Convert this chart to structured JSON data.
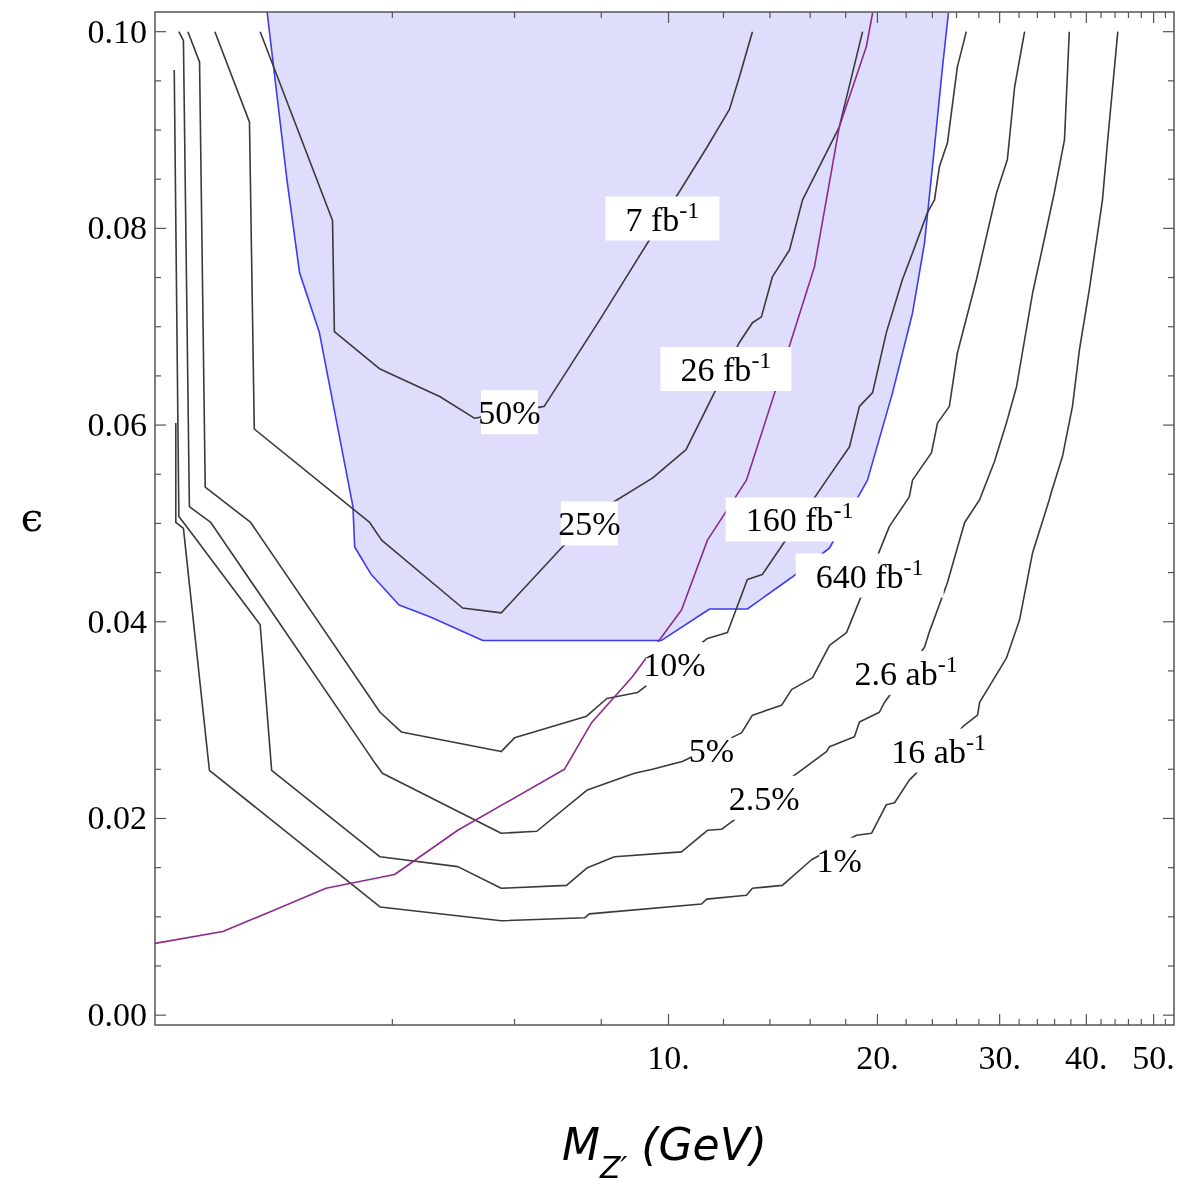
{
  "chart_data": {
    "type": "line",
    "xlabel": "M$_{Z′}$ (GeV)",
    "ylabel": "ϵ",
    "log": "x",
    "xlim": [
      1.82,
      53.5
    ],
    "ylim": [
      -0.001,
      0.102
    ],
    "xticks": [
      {
        "value": 4,
        "label": null
      },
      {
        "value": 6,
        "label": null
      },
      {
        "value": 8,
        "label": null
      },
      {
        "value": 10,
        "label": "10."
      },
      {
        "value": 12,
        "label": null
      },
      {
        "value": 14,
        "label": null
      },
      {
        "value": 16,
        "label": null
      },
      {
        "value": 18,
        "label": null
      },
      {
        "value": 20,
        "label": "20."
      },
      {
        "value": 22,
        "label": null
      },
      {
        "value": 24,
        "label": null
      },
      {
        "value": 26,
        "label": null
      },
      {
        "value": 28,
        "label": null
      },
      {
        "value": 30,
        "label": "30."
      },
      {
        "value": 32,
        "label": null
      },
      {
        "value": 34,
        "label": null
      },
      {
        "value": 36,
        "label": null
      },
      {
        "value": 38,
        "label": null
      },
      {
        "value": 40,
        "label": "40."
      },
      {
        "value": 42,
        "label": null
      },
      {
        "value": 44,
        "label": null
      },
      {
        "value": 46,
        "label": null
      },
      {
        "value": 48,
        "label": null
      },
      {
        "value": 50,
        "label": "50."
      },
      {
        "value": 52,
        "label": null
      }
    ],
    "yticks": [
      {
        "value": 0,
        "label": "0.00"
      },
      {
        "value": 0.005,
        "label": null
      },
      {
        "value": 0.01,
        "label": null
      },
      {
        "value": 0.015,
        "label": null
      },
      {
        "value": 0.02,
        "label": "0.02"
      },
      {
        "value": 0.025,
        "label": null
      },
      {
        "value": 0.03,
        "label": null
      },
      {
        "value": 0.035,
        "label": null
      },
      {
        "value": 0.04,
        "label": "0.04"
      },
      {
        "value": 0.045,
        "label": null
      },
      {
        "value": 0.05,
        "label": null
      },
      {
        "value": 0.055,
        "label": null
      },
      {
        "value": 0.06,
        "label": "0.06"
      },
      {
        "value": 0.065,
        "label": null
      },
      {
        "value": 0.07,
        "label": null
      },
      {
        "value": 0.075,
        "label": null
      },
      {
        "value": 0.08,
        "label": "0.08"
      },
      {
        "value": 0.085,
        "label": null
      },
      {
        "value": 0.09,
        "label": null
      },
      {
        "value": 0.095,
        "label": null
      },
      {
        "value": 0.1,
        "label": "0.10"
      }
    ],
    "series": [
      {
        "type": "line",
        "color": "#3c3cf0",
        "x": [
          2.64,
          2.82,
          2.94,
          3.14,
          3.51,
          3.53,
          3.73,
          4.09,
          4.53,
          5.4,
          9.77,
          11.46,
          12.99,
          15.04,
          17.06,
          19.35,
          21.03,
          22.47,
          23.38,
          24.17,
          24.82,
          25.31
        ],
        "values": [
          0.102,
          0.0849,
          0.0755,
          0.0694,
          0.0517,
          0.0476,
          0.0448,
          0.0417,
          0.0405,
          0.0381,
          0.0381,
          0.0413,
          0.0413,
          0.0445,
          0.0475,
          0.0544,
          0.0633,
          0.0714,
          0.0785,
          0.0883,
          0.0964,
          0.1019
        ],
        "lower": [
          0.102,
          0.0849,
          0.0755,
          0.0694,
          0.0517,
          0.0476,
          0.0448,
          0.0417,
          0.0405,
          0.0381,
          0.0381,
          0.0413,
          0.0413,
          0.0445,
          0.0475,
          0.0544,
          0.0633,
          0.0714,
          0.0785,
          0.0883,
          0.0964,
          0.1019
        ],
        "upper": [
          0.102,
          0.102,
          0.102,
          0.102,
          0.102,
          0.102,
          0.102,
          0.102,
          0.102,
          0.102,
          0.102,
          0.102,
          0.102,
          0.102,
          0.102,
          0.102,
          0.102,
          0.102,
          0.102,
          0.102,
          0.102,
          0.102
        ]
      },
      {
        "color": "#3a3a3a",
        "x": [
          2.58,
          3.28,
          3.3,
          3.84,
          4.68,
          5.25,
          6.62,
          7.96,
          11.35,
          12.24,
          12.65,
          13.21
        ],
        "values": [
          0.1,
          0.0808,
          0.0695,
          0.0657,
          0.0629,
          0.0607,
          0.0619,
          0.0707,
          0.0882,
          0.0921,
          0.0954,
          0.1
        ]
      },
      {
        "color": "#3a3a3a",
        "x": [
          2.22,
          2.49,
          2.53,
          3.71,
          3.86,
          5.05,
          5.74,
          7.03,
          8.3,
          9.48,
          10.6,
          12.65,
          13.21,
          13.61,
          14.12,
          14.94,
          15.6,
          17.62,
          19.04
        ],
        "values": [
          0.1,
          0.0908,
          0.0596,
          0.0501,
          0.0483,
          0.0414,
          0.0409,
          0.0476,
          0.0521,
          0.0546,
          0.0575,
          0.0684,
          0.0704,
          0.071,
          0.0751,
          0.0778,
          0.0829,
          0.0903,
          0.1
        ]
      },
      {
        "color": "#3a3a3a",
        "x": [
          2.03,
          2.11,
          2.15,
          2.5,
          3.84,
          4.12,
          5.74,
          6.0,
          7.62,
          8.15,
          9.02,
          11.38,
          12.16,
          12.99,
          13.65,
          16.89,
          18.23,
          18.84,
          19.68,
          20.6,
          21.73,
          22.47,
          23.61,
          24.17,
          24.57,
          25.23,
          26.07,
          26.86
        ],
        "values": [
          0.1,
          0.0969,
          0.0537,
          0.0501,
          0.0308,
          0.0288,
          0.0268,
          0.0282,
          0.0304,
          0.0322,
          0.0328,
          0.0383,
          0.0389,
          0.0443,
          0.0448,
          0.0544,
          0.0578,
          0.0619,
          0.0633,
          0.0694,
          0.0748,
          0.0775,
          0.0816,
          0.0829,
          0.0863,
          0.0887,
          0.0964,
          0.1
        ]
      },
      {
        "color": "#3a3a3a",
        "x": [
          1.97,
          2.0,
          2.04,
          2.19,
          3.77,
          3.87,
          5.74,
          6.46,
          7.64,
          8.93,
          9.48,
          10.47,
          12.74,
          13.21,
          14.55,
          15.04,
          16.12,
          17.06,
          18.05,
          20.81,
          22.23,
          22.47,
          23.93,
          24.41,
          25.39,
          26.07,
          27.78,
          29.69,
          30.78,
          31.53,
          32.59
        ],
        "values": [
          0.1,
          0.0991,
          0.0517,
          0.0501,
          0.0257,
          0.0246,
          0.0185,
          0.0187,
          0.0229,
          0.0246,
          0.025,
          0.0258,
          0.0287,
          0.0305,
          0.0315,
          0.0331,
          0.0343,
          0.0376,
          0.0389,
          0.0497,
          0.0527,
          0.0544,
          0.0572,
          0.0602,
          0.0619,
          0.0673,
          0.0748,
          0.0836,
          0.087,
          0.0944,
          0.1
        ]
      },
      {
        "color": "#3a3a3a",
        "x": [
          1.94,
          1.97,
          2.04,
          2.58,
          2.68,
          3.84,
          4.97,
          5.74,
          7.13,
          7.64,
          8.36,
          10.44,
          11.38,
          11.92,
          16.89,
          17.06,
          18.53,
          18.84,
          20.13,
          20.47,
          23.38,
          23.77,
          25.23,
          26.71,
          28.07,
          29.49,
          30.68,
          31.73,
          33.46,
          34.45,
          35.96,
          37.2,
          37.8
        ],
        "values": [
          0.0961,
          0.0507,
          0.0493,
          0.0397,
          0.0249,
          0.0161,
          0.0151,
          0.0129,
          0.0132,
          0.015,
          0.0161,
          0.0166,
          0.0188,
          0.0189,
          0.0268,
          0.0273,
          0.0283,
          0.0298,
          0.0308,
          0.0318,
          0.0374,
          0.039,
          0.044,
          0.0501,
          0.0524,
          0.0563,
          0.0602,
          0.0639,
          0.0734,
          0.0775,
          0.0836,
          0.089,
          0.1
        ]
      },
      {
        "color": "#3a3a3a",
        "x": [
          1.95,
          1.95,
          2.0,
          2.18,
          3.84,
          5.74,
          7.57,
          7.69,
          11.16,
          11.35,
          12.95,
          13.21,
          14.59,
          16.07,
          18.66,
          19.62,
          20.6,
          21.17,
          22.23,
          26.71,
          27.88,
          28.07,
          30.68,
          32.05,
          33.46,
          35.37,
          35.62,
          36.95,
          38.2,
          39.1,
          40.4,
          42.2,
          42.9,
          44.4
        ],
        "values": [
          0.0602,
          0.0501,
          0.0495,
          0.0249,
          0.011,
          0.0096,
          0.0099,
          0.0103,
          0.0113,
          0.0118,
          0.0122,
          0.0129,
          0.0132,
          0.0158,
          0.0183,
          0.0185,
          0.0214,
          0.0216,
          0.0239,
          0.0295,
          0.0305,
          0.0318,
          0.0363,
          0.0402,
          0.047,
          0.0524,
          0.0532,
          0.0568,
          0.0619,
          0.0677,
          0.0738,
          0.0829,
          0.0887,
          0.1
        ]
      },
      {
        "color": "#8e2a8e",
        "x": [
          1.82,
          2.28,
          3.21,
          4.03,
          4.97,
          7.08,
          7.74,
          8.87,
          10.44,
          11.38,
          12.95,
          14.12,
          16.23,
          17.62,
          19.28,
          19.68
        ],
        "values": [
          0.0073,
          0.0085,
          0.0129,
          0.0143,
          0.0188,
          0.025,
          0.0297,
          0.0344,
          0.0412,
          0.0483,
          0.0544,
          0.0626,
          0.0761,
          0.0903,
          0.0985,
          0.1019
        ]
      }
    ],
    "annotations": [
      {
        "text": "50%",
        "x": 5.9,
        "y": 0.0613
      },
      {
        "text": "7 fb$^{-1}$",
        "x": 9.8,
        "y": 0.081
      },
      {
        "text": "25%",
        "x": 7.69,
        "y": 0.05
      },
      {
        "text": "26 fb$^{-1}$",
        "x": 12.1,
        "y": 0.0657
      },
      {
        "text": "10%",
        "x": 10.2,
        "y": 0.0357
      },
      {
        "text": "160 fb$^{-1}$",
        "x": 15.45,
        "y": 0.0504
      },
      {
        "text": "5%",
        "x": 11.53,
        "y": 0.027
      },
      {
        "text": "640 fb$^{-1}$",
        "x": 19.49,
        "y": 0.0447
      },
      {
        "text": "2.5%",
        "x": 13.74,
        "y": 0.0221
      },
      {
        "text": "2.6 ab$^{-1}$",
        "x": 22.0,
        "y": 0.0348
      },
      {
        "text": "1%",
        "x": 17.62,
        "y": 0.0158
      },
      {
        "text": "16 ab$^{-1}$",
        "x": 24.5,
        "y": 0.0269
      }
    ]
  }
}
